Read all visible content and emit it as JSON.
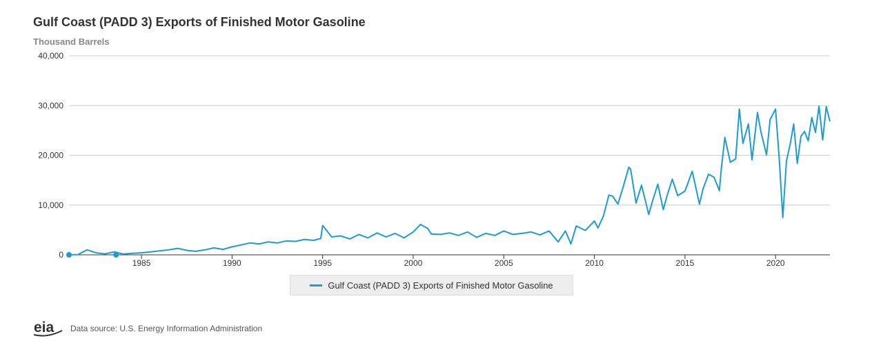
{
  "chart_data": {
    "type": "line",
    "title": "Gulf Coast (PADD 3) Exports of Finished Motor Gasoline",
    "subtitle": "Thousand Barrels",
    "ylim": [
      0,
      40000
    ],
    "y_ticks": [
      0,
      10000,
      20000,
      30000,
      40000
    ],
    "y_tick_labels": [
      "0",
      "10,000",
      "20,000",
      "30,000",
      "40,000"
    ],
    "x_range": [
      1981,
      2023
    ],
    "x_ticks": [
      1985,
      1990,
      1995,
      2000,
      2005,
      2010,
      2015,
      2020
    ],
    "x_tick_labels": [
      "1985",
      "1990",
      "1995",
      "2000",
      "2005",
      "2010",
      "2015",
      "2020"
    ],
    "grid": "horizontal",
    "legend_position": "bottom-center",
    "series": [
      {
        "name": "Gulf Coast (PADD 3) Exports of Finished Motor Gasoline",
        "color": "#1a9bd7",
        "x": [
          1981.0,
          1981.5,
          1982.0,
          1982.5,
          1983.0,
          1983.5,
          1984.0,
          1984.5,
          1985.0,
          1985.5,
          1986.0,
          1986.5,
          1987.0,
          1987.5,
          1988.0,
          1988.5,
          1989.0,
          1989.5,
          1990.0,
          1990.5,
          1991.0,
          1991.5,
          1992.0,
          1992.5,
          1993.0,
          1993.5,
          1994.0,
          1994.5,
          1994.9,
          1995.0,
          1995.5,
          1996.0,
          1996.5,
          1997.0,
          1997.5,
          1998.0,
          1998.5,
          1999.0,
          1999.5,
          2000.0,
          2000.4,
          2000.8,
          2001.0,
          2001.5,
          2002.0,
          2002.5,
          2003.0,
          2003.5,
          2004.0,
          2004.5,
          2005.0,
          2005.5,
          2006.0,
          2006.5,
          2007.0,
          2007.5,
          2008.0,
          2008.4,
          2008.7,
          2009.0,
          2009.5,
          2010.0,
          2010.2,
          2010.5,
          2010.8,
          2011.0,
          2011.3,
          2011.6,
          2011.9,
          2012.0,
          2012.3,
          2012.6,
          2013.0,
          2013.2,
          2013.5,
          2013.8,
          2014.0,
          2014.3,
          2014.6,
          2015.0,
          2015.4,
          2015.8,
          2016.0,
          2016.3,
          2016.6,
          2016.9,
          2017.0,
          2017.2,
          2017.5,
          2017.8,
          2018.0,
          2018.2,
          2018.5,
          2018.7,
          2019.0,
          2019.2,
          2019.5,
          2019.7,
          2020.0,
          2020.2,
          2020.4,
          2020.6,
          2020.8,
          2021.0,
          2021.2,
          2021.4,
          2021.6,
          2021.8,
          2022.0,
          2022.2,
          2022.4,
          2022.6,
          2022.8,
          2023.0
        ],
        "values": [
          0,
          50,
          1000,
          400,
          200,
          600,
          150,
          300,
          400,
          600,
          800,
          1000,
          1300,
          900,
          700,
          1000,
          1400,
          1100,
          1600,
          2000,
          2400,
          2200,
          2600,
          2400,
          2800,
          2700,
          3100,
          2900,
          3300,
          5900,
          3600,
          3800,
          3200,
          4100,
          3400,
          4400,
          3600,
          4300,
          3400,
          4600,
          6100,
          5300,
          4200,
          4100,
          4400,
          3900,
          4600,
          3500,
          4300,
          3900,
          4800,
          4100,
          4300,
          4600,
          4000,
          4800,
          2600,
          4800,
          2200,
          5800,
          4900,
          6800,
          5400,
          7800,
          12000,
          11800,
          10200,
          13800,
          17600,
          17200,
          10400,
          14000,
          8100,
          10700,
          14200,
          9100,
          11700,
          15200,
          11900,
          12800,
          16800,
          10200,
          13300,
          16200,
          15600,
          12900,
          17100,
          23600,
          18600,
          19300,
          29300,
          22400,
          26300,
          19100,
          28600,
          24600,
          20100,
          27200,
          29300,
          19400,
          7500,
          18900,
          22100,
          26300,
          18400,
          23800,
          24800,
          22900,
          27600,
          24600,
          29900,
          23100,
          29800,
          26800
        ]
      }
    ]
  },
  "legend": {
    "label": "Gulf Coast (PADD 3) Exports of Finished Motor Gasoline"
  },
  "footer": {
    "source": "Data source: U.S. Energy Information Administration",
    "logo_text": "eia"
  }
}
